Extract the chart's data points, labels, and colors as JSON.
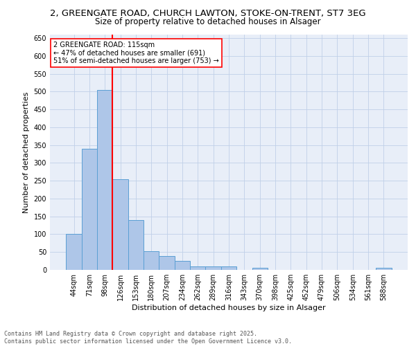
{
  "title1": "2, GREENGATE ROAD, CHURCH LAWTON, STOKE-ON-TRENT, ST7 3EG",
  "title2": "Size of property relative to detached houses in Alsager",
  "xlabel": "Distribution of detached houses by size in Alsager",
  "ylabel": "Number of detached properties",
  "categories": [
    "44sqm",
    "71sqm",
    "98sqm",
    "126sqm",
    "153sqm",
    "180sqm",
    "207sqm",
    "234sqm",
    "262sqm",
    "289sqm",
    "316sqm",
    "343sqm",
    "370sqm",
    "398sqm",
    "425sqm",
    "452sqm",
    "479sqm",
    "506sqm",
    "534sqm",
    "561sqm",
    "588sqm"
  ],
  "values": [
    100,
    340,
    505,
    255,
    140,
    53,
    38,
    25,
    10,
    10,
    10,
    0,
    5,
    0,
    0,
    0,
    0,
    0,
    0,
    0,
    5
  ],
  "bar_color": "#aec6e8",
  "bar_edge_color": "#5a9fd4",
  "vline_color": "red",
  "vline_x_idx": 2,
  "annotation_text": "2 GREENGATE ROAD: 115sqm\n← 47% of detached houses are smaller (691)\n51% of semi-detached houses are larger (753) →",
  "annotation_box_color": "white",
  "annotation_box_edge_color": "red",
  "ylim": [
    0,
    660
  ],
  "yticks": [
    0,
    50,
    100,
    150,
    200,
    250,
    300,
    350,
    400,
    450,
    500,
    550,
    600,
    650
  ],
  "grid_color": "#c0d0e8",
  "bg_color": "#e8eef8",
  "footer": "Contains HM Land Registry data © Crown copyright and database right 2025.\nContains public sector information licensed under the Open Government Licence v3.0.",
  "title1_fontsize": 9.5,
  "title2_fontsize": 8.5,
  "xlabel_fontsize": 8,
  "ylabel_fontsize": 8,
  "tick_fontsize": 7,
  "annot_fontsize": 7,
  "footer_fontsize": 6
}
